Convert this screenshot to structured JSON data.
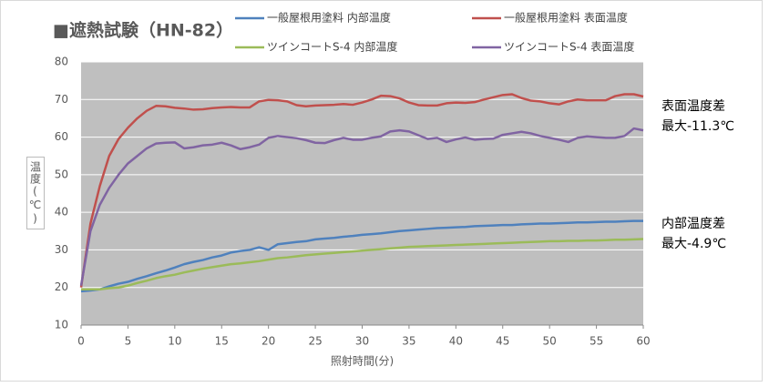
{
  "chart_data": {
    "type": "line",
    "title": "■遮熱試験（HN-82）",
    "x_label": "照射時間(分)",
    "y_label": "温度(℃)",
    "x": [
      0,
      1,
      2,
      3,
      4,
      5,
      6,
      7,
      8,
      9,
      10,
      11,
      12,
      13,
      14,
      15,
      16,
      17,
      18,
      19,
      20,
      21,
      22,
      23,
      24,
      25,
      26,
      27,
      28,
      29,
      30,
      31,
      32,
      33,
      34,
      35,
      36,
      37,
      38,
      39,
      40,
      41,
      42,
      43,
      44,
      45,
      46,
      47,
      48,
      49,
      50,
      51,
      52,
      53,
      54,
      55,
      56,
      57,
      58,
      59,
      60
    ],
    "xlim": [
      0,
      60
    ],
    "xticks": [
      0,
      5,
      10,
      15,
      20,
      25,
      30,
      35,
      40,
      45,
      50,
      55,
      60
    ],
    "ylim": [
      10,
      80
    ],
    "yticks": [
      10,
      20,
      30,
      40,
      50,
      60,
      70,
      80
    ],
    "grid": true,
    "series": [
      {
        "name": "一般屋根用塗料 内部温度",
        "color": "#4f81bd",
        "values": [
          19,
          19.2,
          19.5,
          20.3,
          21,
          21.5,
          22.3,
          23,
          23.8,
          24.5,
          25.3,
          26.2,
          26.8,
          27.3,
          28,
          28.5,
          29.3,
          29.7,
          30,
          30.7,
          30,
          31.5,
          31.8,
          32.1,
          32.3,
          32.8,
          33,
          33.2,
          33.5,
          33.7,
          34,
          34.2,
          34.4,
          34.7,
          35,
          35.2,
          35.4,
          35.6,
          35.8,
          35.9,
          36,
          36.1,
          36.3,
          36.4,
          36.5,
          36.6,
          36.6,
          36.8,
          36.9,
          37,
          37,
          37.1,
          37.2,
          37.3,
          37.3,
          37.4,
          37.5,
          37.5,
          37.6,
          37.7,
          37.7
        ]
      },
      {
        "name": "一般屋根用塗料 表面温度",
        "color": "#c0504d",
        "values": [
          20,
          37,
          47,
          55,
          59.5,
          62.5,
          65,
          67,
          68.3,
          68.2,
          67.8,
          67.6,
          67.3,
          67.4,
          67.7,
          67.9,
          68,
          67.9,
          67.9,
          69.5,
          69.9,
          69.8,
          69.5,
          68.5,
          68.2,
          68.4,
          68.5,
          68.6,
          68.8,
          68.6,
          69.2,
          70,
          71,
          70.9,
          70.3,
          69.2,
          68.5,
          68.4,
          68.4,
          69,
          69.2,
          69.1,
          69.3,
          70,
          70.6,
          71.2,
          71.4,
          70.4,
          69.7,
          69.5,
          69,
          68.7,
          69.5,
          70,
          69.8,
          69.8,
          69.8,
          70.9,
          71.4,
          71.4,
          70.8
        ]
      },
      {
        "name": "ツインコートS-4 内部温度",
        "color": "#9bbb59",
        "values": [
          19.5,
          19.5,
          19.5,
          19.8,
          20,
          20.5,
          21.2,
          21.8,
          22.5,
          23,
          23.4,
          24,
          24.5,
          25,
          25.4,
          25.8,
          26.2,
          26.4,
          26.7,
          27,
          27.4,
          27.8,
          28,
          28.3,
          28.6,
          28.8,
          29,
          29.2,
          29.4,
          29.6,
          29.8,
          30,
          30.2,
          30.4,
          30.6,
          30.8,
          30.9,
          31,
          31.1,
          31.2,
          31.3,
          31.4,
          31.5,
          31.6,
          31.7,
          31.8,
          31.9,
          32,
          32.1,
          32.2,
          32.3,
          32.3,
          32.4,
          32.4,
          32.5,
          32.5,
          32.6,
          32.7,
          32.7,
          32.8,
          32.9
        ]
      },
      {
        "name": "ツインコートS-4 表面温度",
        "color": "#8064a2",
        "values": [
          20.5,
          35,
          42,
          46.5,
          50,
          53,
          55,
          57,
          58.3,
          58.5,
          58.6,
          57,
          57.3,
          57.8,
          58,
          58.5,
          57.8,
          56.8,
          57.3,
          58,
          59.8,
          60.3,
          60,
          59.7,
          59.2,
          58.5,
          58.4,
          59.2,
          59.8,
          59.3,
          59.3,
          59.8,
          60.2,
          61.5,
          61.8,
          61.5,
          60.5,
          59.5,
          59.8,
          58.7,
          59.4,
          59.9,
          59.3,
          59.5,
          59.6,
          60.6,
          61,
          61.4,
          61,
          60.3,
          59.8,
          59.3,
          58.7,
          59.8,
          60.2,
          60,
          59.8,
          59.8,
          60.3,
          62.3,
          61.8
        ]
      }
    ],
    "annotations": [
      {
        "lines": [
          "表面温度差",
          "最大-11.3℃"
        ]
      },
      {
        "lines": [
          "内部温度差",
          "最大-4.9℃"
        ]
      }
    ]
  }
}
